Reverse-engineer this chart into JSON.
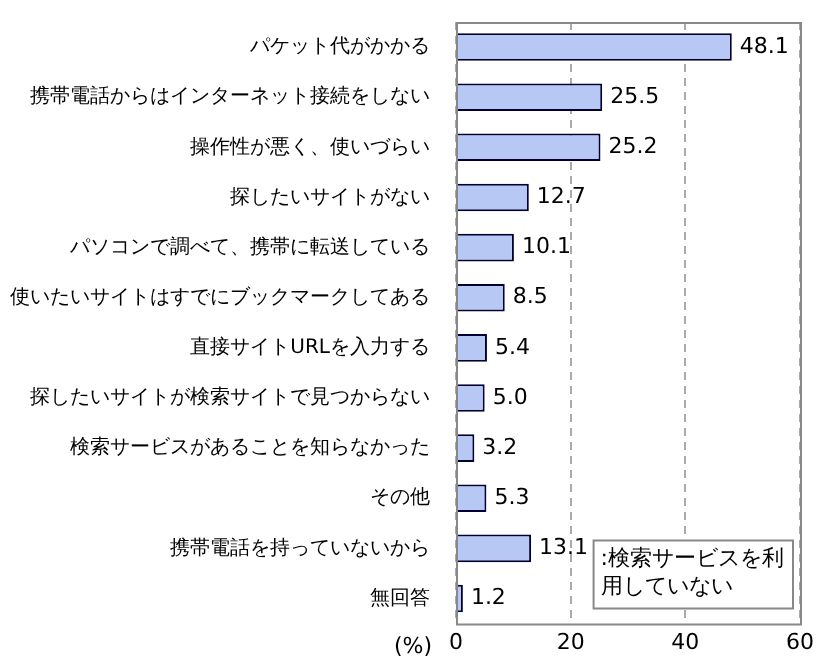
{
  "chart_data": {
    "type": "bar",
    "orientation": "horizontal",
    "xlabel": "(%)",
    "categories": [
      "パケット代がかかる",
      "携帯電話からはインターネット接続をしない",
      "操作性が悪く、使いづらい",
      "探したいサイトがない",
      "パソコンで調べて、携帯に転送している",
      "使いたいサイトはすでにブックマークしてある",
      "直接サイトURLを入力する",
      "探したいサイトが検索サイトで見つからない",
      "検索サービスがあることを知らなかった",
      "その他",
      "携帯電話を持っていないから",
      "無回答"
    ],
    "values": [
      48.1,
      25.5,
      25.2,
      12.7,
      10.1,
      8.5,
      5.4,
      5.0,
      3.2,
      5.3,
      13.1,
      1.2
    ],
    "value_labels": [
      "48.1",
      "25.5",
      "25.2",
      "12.7",
      "10.1",
      "8.5",
      "5.4",
      "5.0",
      "3.2",
      "5.3",
      "13.1",
      "1.2"
    ],
    "color": "#b8c8f4",
    "xlim": [
      0,
      60
    ],
    "xticks": [
      0,
      20,
      40,
      60
    ],
    "grid": "x",
    "annotations": [
      ":検索サービスを利用していない"
    ]
  }
}
